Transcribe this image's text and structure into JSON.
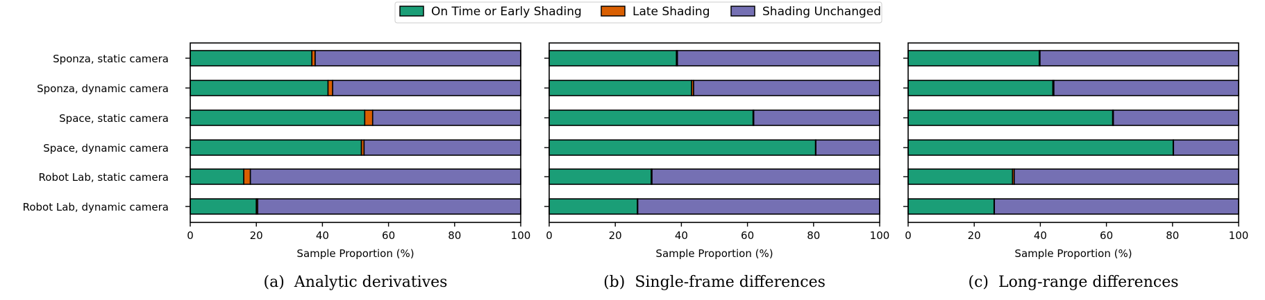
{
  "legend": {
    "items": [
      {
        "label": "On Time or Early Shading",
        "color": "#1b9e77"
      },
      {
        "label": "Late Shading",
        "color": "#d95f02"
      },
      {
        "label": "Shading Unchanged",
        "color": "#7570b3"
      }
    ]
  },
  "chart_data": [
    {
      "type": "bar",
      "orientation": "horizontal",
      "stacked": true,
      "caption": "(a)  Analytic derivatives",
      "xlabel": "Sample Proportion (%)",
      "xlim": [
        0,
        100
      ],
      "xticks": [
        "0",
        "20",
        "40",
        "60",
        "80",
        "100"
      ],
      "categories": [
        "Sponza, static camera",
        "Sponza, dynamic camera",
        "Space, static camera",
        "Space, dynamic camera",
        "Robot Lab, static camera",
        "Robot Lab, dynamic camera"
      ],
      "series": [
        {
          "name": "On Time or Early Shading",
          "values": [
            36.8,
            41.7,
            52.8,
            51.8,
            16.2,
            20.0
          ]
        },
        {
          "name": "Late Shading",
          "values": [
            1.0,
            1.4,
            2.4,
            0.8,
            2.0,
            0.4
          ]
        },
        {
          "name": "Shading Unchanged",
          "values": [
            62.2,
            56.9,
            44.8,
            47.4,
            81.8,
            79.6
          ]
        }
      ]
    },
    {
      "type": "bar",
      "orientation": "horizontal",
      "stacked": true,
      "caption": "(b)  Single-frame differences",
      "xlabel": "Sample Proportion (%)",
      "xlim": [
        0,
        100
      ],
      "xticks": [
        "0",
        "20",
        "40",
        "60",
        "80",
        "100"
      ],
      "categories": [
        "Sponza, static camera",
        "Sponza, dynamic camera",
        "Space, static camera",
        "Space, dynamic camera",
        "Robot Lab, static camera",
        "Robot Lab, dynamic camera"
      ],
      "series": [
        {
          "name": "On Time or Early Shading",
          "values": [
            38.5,
            43.1,
            61.7,
            80.6,
            30.9,
            26.7
          ]
        },
        {
          "name": "Late Shading",
          "values": [
            0.3,
            0.6,
            0.2,
            0.1,
            0.2,
            0.1
          ]
        },
        {
          "name": "Shading Unchanged",
          "values": [
            61.2,
            56.3,
            38.1,
            19.3,
            68.9,
            73.2
          ]
        }
      ]
    },
    {
      "type": "bar",
      "orientation": "horizontal",
      "stacked": true,
      "caption": "(c)  Long-range differences",
      "xlabel": "Sample Proportion (%)",
      "xlim": [
        0,
        100
      ],
      "xticks": [
        "0",
        "20",
        "40",
        "60",
        "80",
        "100"
      ],
      "categories": [
        "Sponza, static camera",
        "Sponza, dynamic camera",
        "Space, static camera",
        "Space, dynamic camera",
        "Robot Lab, static camera",
        "Robot Lab, dynamic camera"
      ],
      "series": [
        {
          "name": "On Time or Early Shading",
          "values": [
            39.7,
            43.8,
            61.9,
            80.2,
            31.6,
            26.0
          ]
        },
        {
          "name": "Late Shading",
          "values": [
            0.2,
            0.3,
            0.2,
            0.1,
            0.5,
            0.1
          ]
        },
        {
          "name": "Shading Unchanged",
          "values": [
            60.1,
            55.9,
            37.9,
            19.7,
            67.9,
            73.9
          ]
        }
      ]
    }
  ]
}
